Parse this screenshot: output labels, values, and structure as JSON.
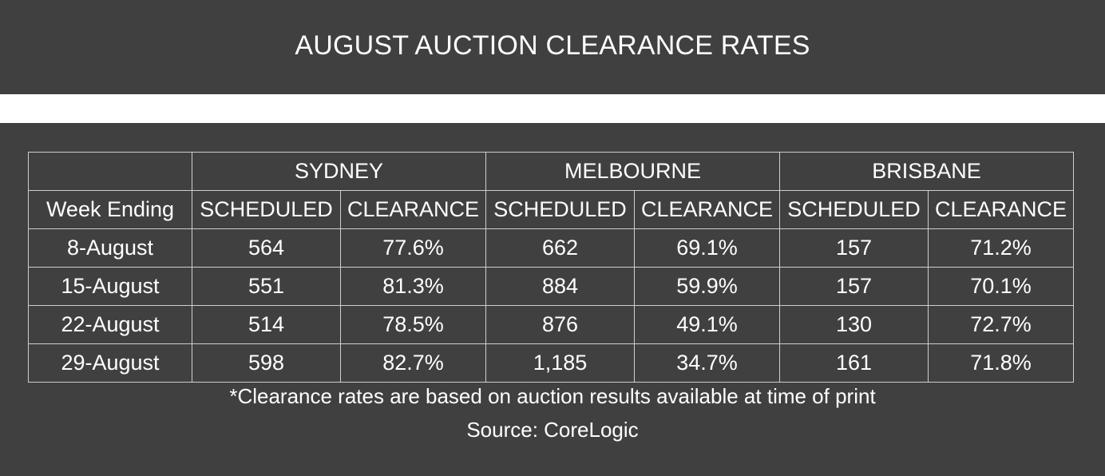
{
  "chart_data": {
    "type": "table",
    "title": "AUGUST AUCTION CLEARANCE RATES",
    "row_header_label": "Week Ending",
    "cities": [
      "SYDNEY",
      "MELBOURNE",
      "BRISBANE"
    ],
    "sub_columns": [
      "SCHEDULED",
      "CLEARANCE"
    ],
    "rows": [
      {
        "week": "8-August",
        "cells": [
          "564",
          "77.6%",
          "662",
          "69.1%",
          "157",
          "71.2%"
        ]
      },
      {
        "week": "15-August",
        "cells": [
          "551",
          "81.3%",
          "884",
          "59.9%",
          "157",
          "70.1%"
        ]
      },
      {
        "week": "22-August",
        "cells": [
          "514",
          "78.5%",
          "876",
          "49.1%",
          "130",
          "72.7%"
        ]
      },
      {
        "week": "29-August",
        "cells": [
          "598",
          "82.7%",
          "1,185",
          "34.7%",
          "161",
          "71.8%"
        ]
      }
    ],
    "note": "*Clearance rates are based on auction results available at time of print",
    "source": "Source: CoreLogic"
  },
  "colors": {
    "background": "#404040",
    "band": "#ffffff",
    "text": "#ffffff",
    "grid": "#cfcfcf"
  }
}
